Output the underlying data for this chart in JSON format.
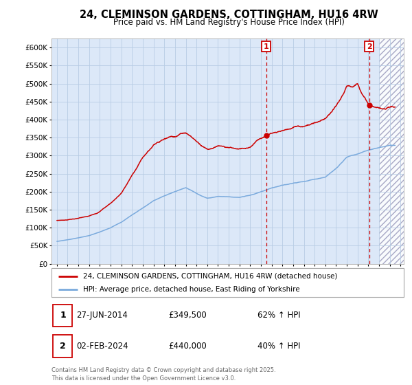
{
  "title": "24, CLEMINSON GARDENS, COTTINGHAM, HU16 4RW",
  "subtitle": "Price paid vs. HM Land Registry's House Price Index (HPI)",
  "xlim_min": 1994.5,
  "xlim_max": 2027.3,
  "ylim_min": 0,
  "ylim_max": 625000,
  "ytick_values": [
    0,
    50000,
    100000,
    150000,
    200000,
    250000,
    300000,
    350000,
    400000,
    450000,
    500000,
    550000,
    600000
  ],
  "bg_color": "#dce8f8",
  "plot_bg": "#ffffff",
  "grid_color": "#b8cce4",
  "red_color": "#cc0000",
  "blue_color": "#7aaadd",
  "sale1_year": 2014.49,
  "sale1_price": 349500,
  "sale1_label": "1",
  "sale2_year": 2024.09,
  "sale2_price": 440000,
  "sale2_label": "2",
  "legend_line1": "24, CLEMINSON GARDENS, COTTINGHAM, HU16 4RW (detached house)",
  "legend_line2": "HPI: Average price, detached house, East Riding of Yorkshire",
  "table_row1": [
    "1",
    "27-JUN-2014",
    "£349,500",
    "62% ↑ HPI"
  ],
  "table_row2": [
    "2",
    "02-FEB-2024",
    "£440,000",
    "40% ↑ HPI"
  ],
  "footer": "Contains HM Land Registry data © Crown copyright and database right 2025.\nThis data is licensed under the Open Government Licence v3.0.",
  "years_hpi": [
    1995,
    1996,
    1997,
    1998,
    1999,
    2000,
    2001,
    2002,
    2003,
    2004,
    2005,
    2006,
    2007,
    2008,
    2009,
    2010,
    2011,
    2012,
    2013,
    2014,
    2015,
    2016,
    2017,
    2018,
    2019,
    2020,
    2021,
    2022,
    2023,
    2024,
    2025,
    2026
  ],
  "hpi_values": [
    62000,
    66000,
    72000,
    78000,
    88000,
    100000,
    115000,
    135000,
    155000,
    175000,
    188000,
    200000,
    212000,
    195000,
    182000,
    187000,
    186000,
    184000,
    190000,
    200000,
    210000,
    218000,
    224000,
    228000,
    234000,
    240000,
    265000,
    295000,
    305000,
    315000,
    322000,
    328000
  ],
  "red_values": [
    120000,
    122000,
    126000,
    132000,
    145000,
    168000,
    195000,
    245000,
    295000,
    330000,
    348000,
    355000,
    365000,
    340000,
    318000,
    325000,
    322000,
    318000,
    325000,
    349500,
    362000,
    370000,
    378000,
    382000,
    390000,
    400000,
    435000,
    490000,
    500000,
    440000,
    430000,
    435000
  ],
  "hatch_start": 2025.0
}
